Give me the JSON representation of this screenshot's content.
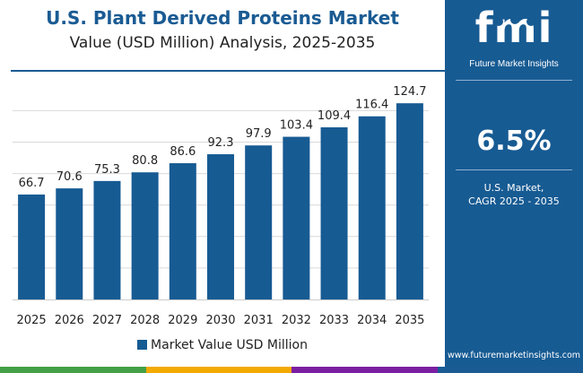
{
  "header": {
    "title": "U.S. Plant Derived Proteins Market",
    "subtitle": "Value (USD Million) Analysis, 2025-2035"
  },
  "legend": {
    "label": "Market Value USD Million",
    "position": "bottom-center"
  },
  "side_panel": {
    "logo_text": "fmi",
    "logo_tagline": "Future Market Insights",
    "cagr_value": "6.5%",
    "cagr_line1": "U.S. Market,",
    "cagr_line2": "CAGR 2025 - 2035",
    "website": "www.futuremarketinsights.com",
    "background_color": "#175b93"
  },
  "bottom_strip_colors": [
    "#43a047",
    "#f2a900",
    "#7b1fa2",
    "#1a5b93"
  ],
  "chart_data": {
    "type": "bar",
    "title": "U.S. Plant Derived Proteins Market",
    "subtitle": "Value (USD Million) Analysis, 2025-2035",
    "categories": [
      "2025",
      "2026",
      "2027",
      "2028",
      "2029",
      "2030",
      "2031",
      "2032",
      "2033",
      "2034",
      "2035"
    ],
    "series": [
      {
        "name": "Market Value USD Million",
        "color": "#175b93",
        "values": [
          66.7,
          70.6,
          75.3,
          80.8,
          86.6,
          92.3,
          97.9,
          103.4,
          109.4,
          116.4,
          124.7
        ]
      }
    ],
    "value_labels": [
      "66.7",
      "70.6",
      "75.3",
      "80.8",
      "86.6",
      "92.3",
      "97.9",
      "103.4",
      "109.4",
      "116.4",
      "124.7"
    ],
    "ylim": [
      0,
      130
    ],
    "grid": true,
    "legend_position": "bottom-center"
  }
}
